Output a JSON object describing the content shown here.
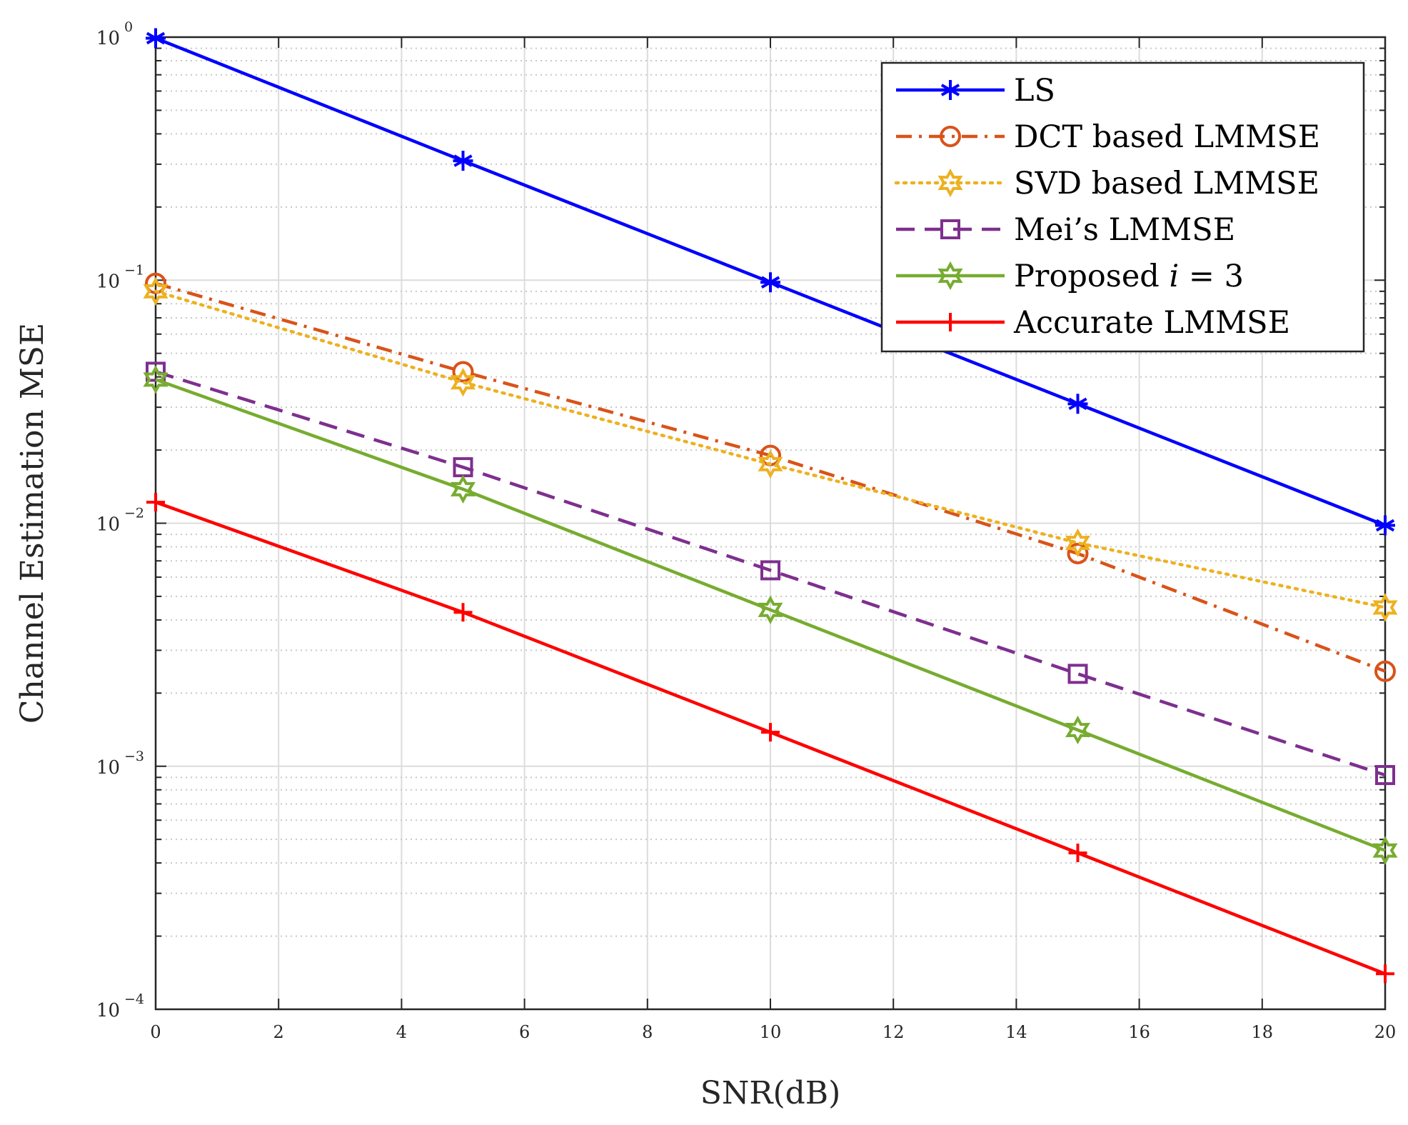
{
  "chart_data": {
    "type": "line",
    "xlabel": "SNR(dB)",
    "ylabel": "Channel Estimation MSE",
    "x": [
      0,
      5,
      10,
      15,
      20
    ],
    "xlim": [
      0,
      20
    ],
    "xticks": [
      "0",
      "2",
      "4",
      "6",
      "8",
      "10",
      "12",
      "14",
      "16",
      "18",
      "20"
    ],
    "ylim": [
      0.0001,
      1
    ],
    "yscale": "log",
    "yticks": [
      {
        "base": "10",
        "exp": "0"
      },
      {
        "base": "10",
        "exp": "−1"
      },
      {
        "base": "10",
        "exp": "−2"
      },
      {
        "base": "10",
        "exp": "−3"
      },
      {
        "base": "10",
        "exp": "−4"
      }
    ],
    "grid": true,
    "legend_position": "top-right",
    "series": [
      {
        "name": "LS",
        "color": "#0000ff",
        "line": "solid",
        "marker": "asterisk",
        "values": [
          0.99,
          0.31,
          0.098,
          0.031,
          0.0098
        ]
      },
      {
        "name": "DCT based LMMSE",
        "color": "#d95319",
        "line": "dashdot",
        "marker": "circle",
        "values": [
          0.097,
          0.042,
          0.019,
          0.0075,
          0.00246
        ]
      },
      {
        "name": "SVD based LMMSE",
        "color": "#edb120",
        "line": "dotted",
        "marker": "hexagram",
        "values": [
          0.09,
          0.038,
          0.0175,
          0.0083,
          0.0045
        ]
      },
      {
        "name": "Mei’s LMMSE",
        "color": "#7e2f8e",
        "line": "dashed",
        "marker": "square",
        "values": [
          0.042,
          0.017,
          0.0064,
          0.0024,
          0.00092
        ]
      },
      {
        "name": "Proposed",
        "name_italic": "i",
        "name_suffix": " = 3",
        "color": "#77ac30",
        "line": "solid",
        "marker": "hexagram",
        "values": [
          0.039,
          0.0138,
          0.0044,
          0.00141,
          0.00045
        ]
      },
      {
        "name": "Accurate LMMSE",
        "color": "#ff0000",
        "line": "solid",
        "marker": "plus",
        "values": [
          0.0122,
          0.0043,
          0.00138,
          0.00044,
          0.00014
        ]
      }
    ]
  }
}
